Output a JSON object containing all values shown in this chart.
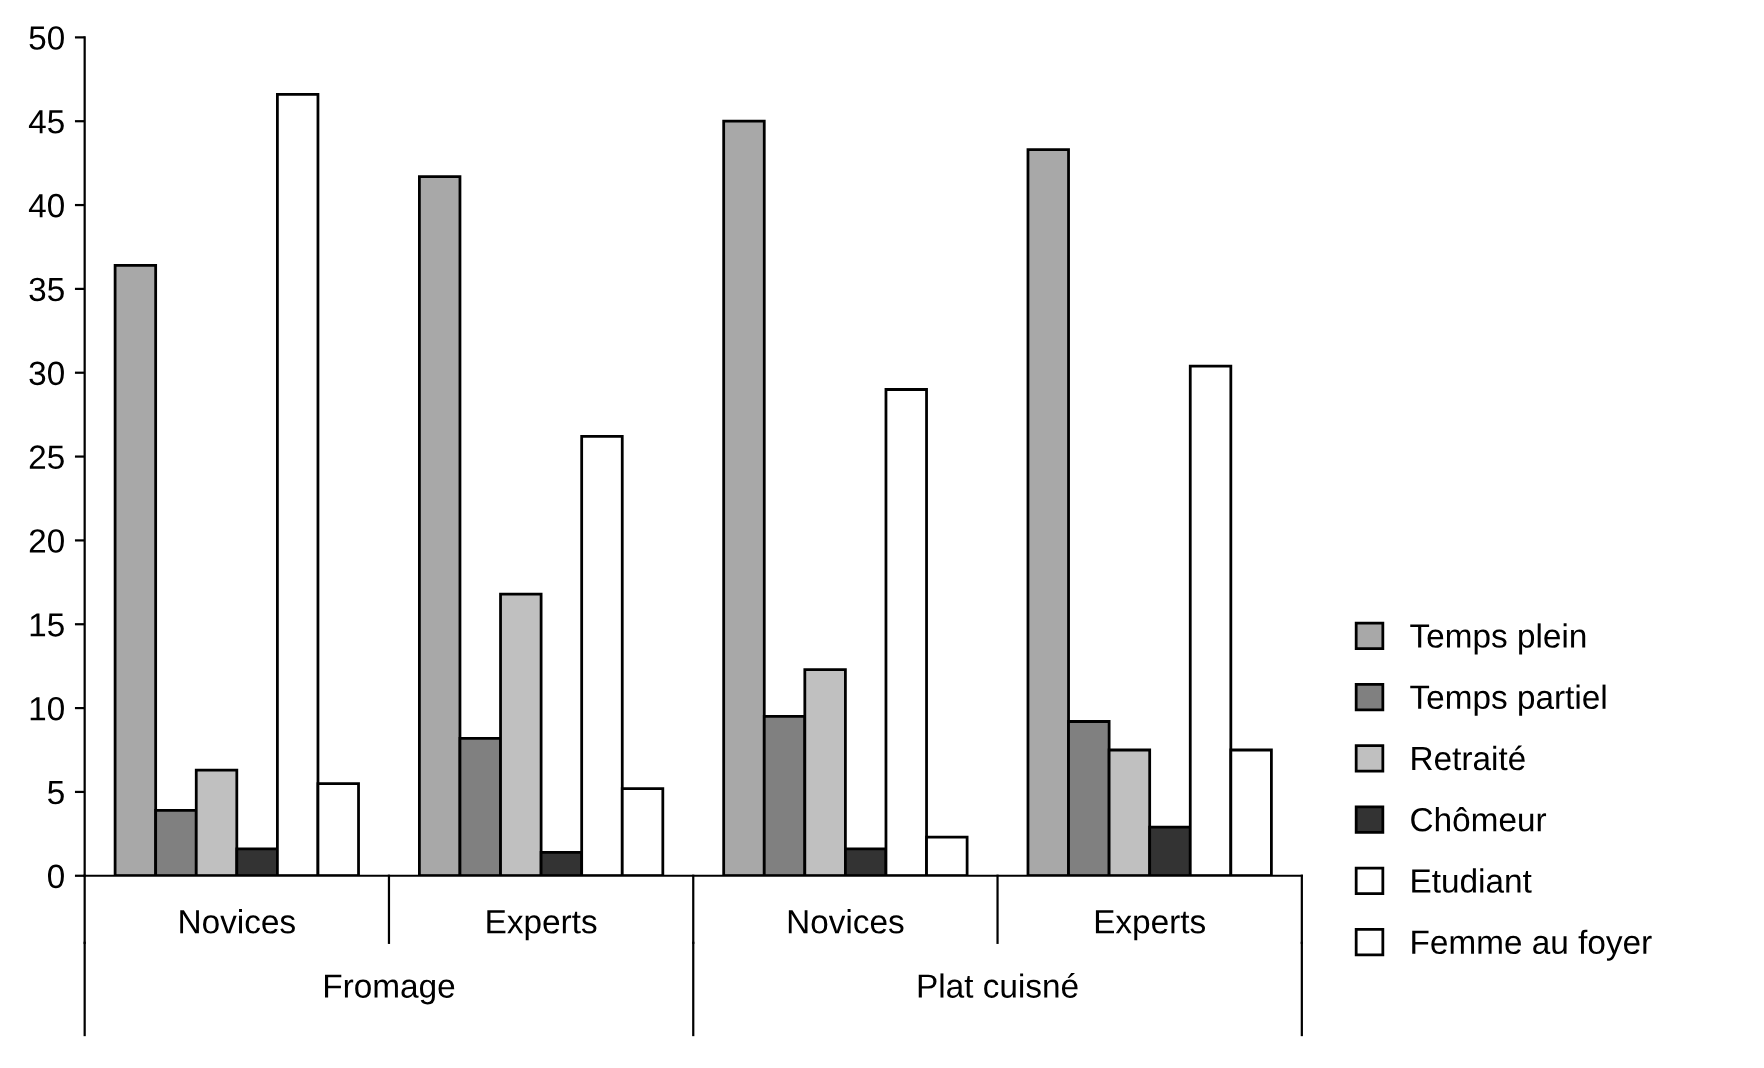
{
  "chart_data": {
    "type": "bar",
    "categories": [
      "Novices",
      "Experts",
      "Novices",
      "Experts"
    ],
    "annotations": [
      "Fromage",
      "Plat cuisné"
    ],
    "series": [
      {
        "name": "Temps plein",
        "color": "#a8a8a8",
        "values": [
          36.4,
          41.7,
          45.0,
          43.3
        ]
      },
      {
        "name": "Temps partiel",
        "color": "#808080",
        "values": [
          3.9,
          8.2,
          9.5,
          9.2
        ]
      },
      {
        "name": "Retraité",
        "color": "#c0c0c0",
        "values": [
          6.3,
          16.8,
          12.3,
          7.5
        ]
      },
      {
        "name": "Chômeur",
        "color": "#333333",
        "values": [
          1.6,
          1.4,
          1.6,
          2.9
        ]
      },
      {
        "name": "Etudiant",
        "color": "#ffffff",
        "values": [
          46.6,
          26.2,
          29.0,
          30.4
        ]
      },
      {
        "name": "Femme au foyer",
        "color": "#ffffff",
        "values": [
          5.5,
          5.2,
          2.3,
          7.5
        ]
      }
    ],
    "ylim": [
      0,
      50
    ],
    "yticks": [
      0,
      5,
      10,
      15,
      20,
      25,
      30,
      35,
      40,
      45,
      50
    ],
    "grid": false,
    "legend": "right"
  }
}
